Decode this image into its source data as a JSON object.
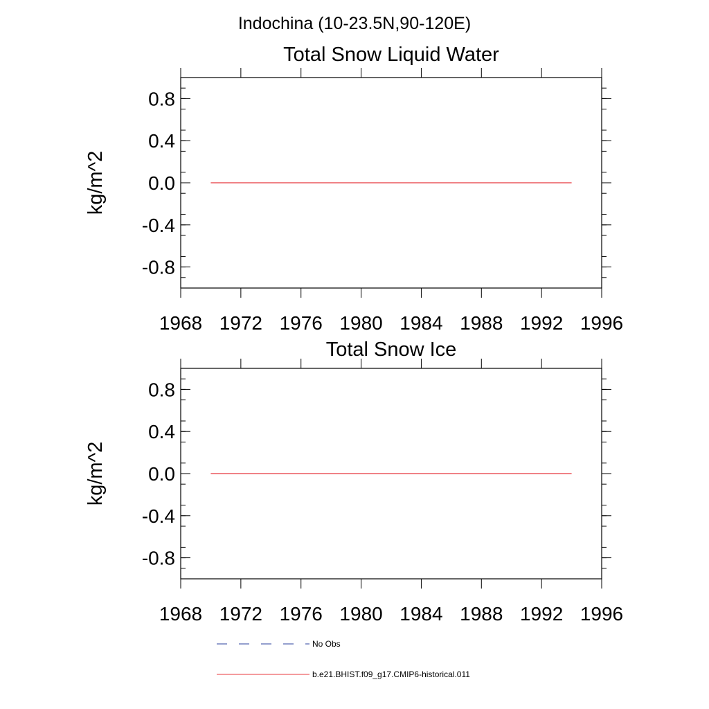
{
  "figure_title": "Indochina (10-23.5N,90-120E)",
  "chart_data": [
    {
      "type": "line",
      "title": "Total Snow Liquid Water",
      "xlabel": "",
      "ylabel": "kg/m^2",
      "xlim": [
        1968,
        1996
      ],
      "ylim": [
        -1.0,
        1.0
      ],
      "x_ticks": [
        1968,
        1972,
        1976,
        1980,
        1984,
        1988,
        1992,
        1996
      ],
      "y_ticks": [
        -0.8,
        -0.4,
        0.0,
        0.4,
        0.8
      ],
      "x_tick_labels": [
        "1968",
        "1972",
        "1976",
        "1980",
        "1984",
        "1988",
        "1992",
        "1996"
      ],
      "y_tick_labels": [
        "-0.8",
        "-0.4",
        "0.0",
        "0.4",
        "0.8"
      ],
      "grid": false,
      "series": [
        {
          "name": "b.e21.BHIST.f09_g17.CMIP6-historical.011",
          "color": "#e8383d",
          "x": [
            1970,
            1994
          ],
          "values": [
            0.0,
            0.0
          ]
        }
      ]
    },
    {
      "type": "line",
      "title": "Total Snow Ice",
      "xlabel": "",
      "ylabel": "kg/m^2",
      "xlim": [
        1968,
        1996
      ],
      "ylim": [
        -1.0,
        1.0
      ],
      "x_ticks": [
        1968,
        1972,
        1976,
        1980,
        1984,
        1988,
        1992,
        1996
      ],
      "y_ticks": [
        -0.8,
        -0.4,
        0.0,
        0.4,
        0.8
      ],
      "x_tick_labels": [
        "1968",
        "1972",
        "1976",
        "1980",
        "1984",
        "1988",
        "1992",
        "1996"
      ],
      "y_tick_labels": [
        "-0.8",
        "-0.4",
        "0.0",
        "0.4",
        "0.8"
      ],
      "grid": false,
      "series": [
        {
          "name": "b.e21.BHIST.f09_g17.CMIP6-historical.011",
          "color": "#e8383d",
          "x": [
            1970,
            1994
          ],
          "values": [
            0.0,
            0.0
          ]
        }
      ]
    }
  ],
  "legend": {
    "placement": "bottom",
    "items": [
      {
        "label": "No Obs",
        "style": "dashed",
        "color": "#2a3f9e"
      },
      {
        "label": "b.e21.BHIST.f09_g17.CMIP6-historical.011",
        "style": "solid",
        "color": "#e8383d"
      }
    ]
  }
}
